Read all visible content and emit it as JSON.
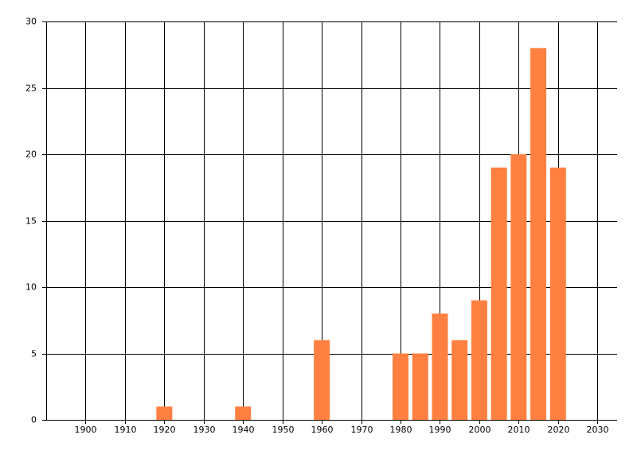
{
  "chart_data": {
    "type": "bar",
    "x": [
      1920,
      1940,
      1960,
      1980,
      1985,
      1990,
      1995,
      2000,
      2005,
      2010,
      2015,
      2020
    ],
    "values": [
      1,
      1,
      6,
      5,
      5,
      8,
      6,
      9,
      19,
      20,
      28,
      19
    ],
    "color": "#ff8040",
    "xlim": [
      1890,
      2035
    ],
    "xticks": [
      1900,
      1910,
      1920,
      1930,
      1940,
      1950,
      1960,
      1970,
      1980,
      1990,
      2000,
      2010,
      2020,
      2030
    ],
    "ylim": [
      0,
      30
    ],
    "yticks": [
      0,
      5,
      10,
      15,
      20,
      25,
      30
    ],
    "grid": true
  }
}
